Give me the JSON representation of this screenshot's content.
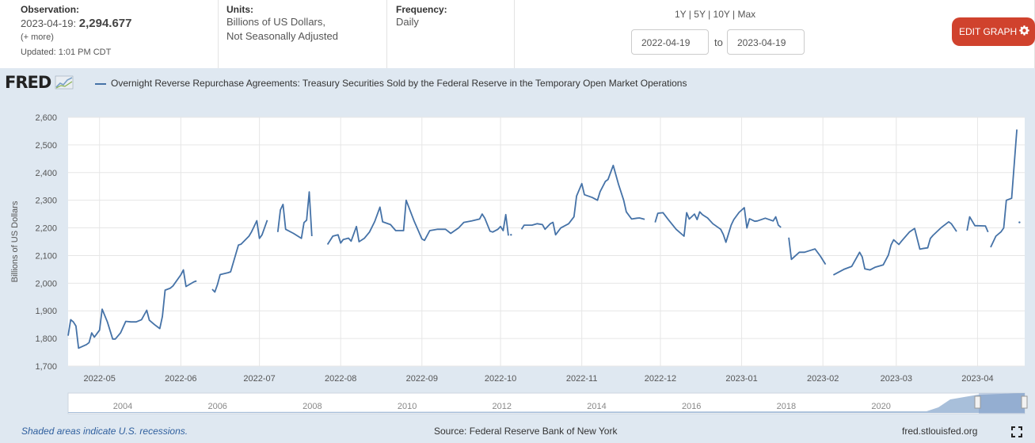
{
  "header": {
    "observation": {
      "label": "Observation:",
      "date": "2023-04-19:",
      "value": "2,294.677",
      "more": "(+ more)",
      "updated": "Updated: 1:01 PM CDT"
    },
    "units": {
      "label": "Units:",
      "line1": "Billions of US Dollars,",
      "line2": "Not Seasonally Adjusted"
    },
    "frequency": {
      "label": "Frequency:",
      "value": "Daily"
    },
    "periods": [
      "1Y",
      "5Y",
      "10Y",
      "Max"
    ],
    "date_from": "2022-04-19",
    "to_label": "to",
    "date_to": "2023-04-19",
    "edit_button": "EDIT GRAPH"
  },
  "logo": "FRED",
  "footer": {
    "recession_note": "Shaded areas indicate U.S. recessions.",
    "source": "Source: Federal Reserve Bank of New York",
    "url": "fred.stlouisfed.org"
  },
  "colors": {
    "series": "#4572a7",
    "edit_button": "#d0422d",
    "plot_bg": "#ffffff",
    "frame_bg": "#dfe8f1"
  },
  "chart_data": {
    "type": "line",
    "series": [
      {
        "name": "Overnight Reverse Repurchase Agreements: Treasury Securities Sold by the Federal Reserve in the Temporary Open Market Operations",
        "segments": [
          [
            [
              "2022-04-19",
              1810
            ],
            [
              "2022-04-20",
              1868
            ],
            [
              "2022-04-21",
              1860
            ],
            [
              "2022-04-22",
              1845
            ],
            [
              "2022-04-23",
              1765
            ],
            [
              "2022-04-26",
              1778
            ],
            [
              "2022-04-27",
              1785
            ],
            [
              "2022-04-28",
              1820
            ],
            [
              "2022-04-29",
              1805
            ],
            [
              "2022-05-01",
              1830
            ],
            [
              "2022-05-02",
              1906
            ],
            [
              "2022-05-04",
              1860
            ],
            [
              "2022-05-06",
              1798
            ],
            [
              "2022-05-07",
              1798
            ],
            [
              "2022-05-09",
              1820
            ],
            [
              "2022-05-11",
              1862
            ],
            [
              "2022-05-13",
              1860
            ],
            [
              "2022-05-15",
              1860
            ],
            [
              "2022-05-17",
              1868
            ],
            [
              "2022-05-19",
              1902
            ],
            [
              "2022-05-20",
              1866
            ],
            [
              "2022-05-22",
              1850
            ],
            [
              "2022-05-24",
              1836
            ],
            [
              "2022-05-25",
              1880
            ],
            [
              "2022-05-26",
              1975
            ],
            [
              "2022-05-28",
              1982
            ],
            [
              "2022-05-29",
              1990
            ],
            [
              "2022-06-01",
              2030
            ],
            [
              "2022-06-02",
              2048
            ],
            [
              "2022-06-03",
              1988
            ],
            [
              "2022-06-06",
              2005
            ],
            [
              "2022-06-07",
              2008
            ]
          ],
          [
            [
              "2022-06-13",
              1978
            ],
            [
              "2022-06-14",
              1968
            ],
            [
              "2022-06-15",
              1995
            ],
            [
              "2022-06-16",
              2031
            ],
            [
              "2022-06-19",
              2038
            ],
            [
              "2022-06-20",
              2041
            ],
            [
              "2022-06-23",
              2138
            ],
            [
              "2022-06-24",
              2141
            ],
            [
              "2022-06-27",
              2170
            ],
            [
              "2022-06-28",
              2186
            ],
            [
              "2022-06-29",
              2206
            ],
            [
              "2022-06-30",
              2226
            ],
            [
              "2022-07-01",
              2162
            ],
            [
              "2022-07-02",
              2175
            ],
            [
              "2022-07-04",
              2228
            ]
          ],
          [
            [
              "2022-07-08",
              2185
            ],
            [
              "2022-07-09",
              2265
            ],
            [
              "2022-07-10",
              2285
            ],
            [
              "2022-07-11",
              2195
            ],
            [
              "2022-07-14",
              2180
            ],
            [
              "2022-07-17",
              2162
            ],
            [
              "2022-07-18",
              2219
            ],
            [
              "2022-07-19",
              2228
            ],
            [
              "2022-07-20",
              2330
            ],
            [
              "2022-07-21",
              2170
            ]
          ],
          [
            [
              "2022-07-27",
              2140
            ],
            [
              "2022-07-29",
              2170
            ],
            [
              "2022-07-31",
              2175
            ],
            [
              "2022-08-01",
              2145
            ],
            [
              "2022-08-02",
              2158
            ],
            [
              "2022-08-04",
              2163
            ],
            [
              "2022-08-05",
              2152
            ],
            [
              "2022-08-07",
              2205
            ],
            [
              "2022-08-08",
              2150
            ],
            [
              "2022-08-10",
              2162
            ],
            [
              "2022-08-12",
              2185
            ],
            [
              "2022-08-14",
              2223
            ],
            [
              "2022-08-16",
              2275
            ],
            [
              "2022-08-17",
              2222
            ],
            [
              "2022-08-20",
              2212
            ],
            [
              "2022-08-22",
              2190
            ],
            [
              "2022-08-25",
              2190
            ],
            [
              "2022-08-26",
              2300
            ],
            [
              "2022-08-29",
              2225
            ],
            [
              "2022-09-01",
              2160
            ],
            [
              "2022-09-02",
              2155
            ],
            [
              "2022-09-04",
              2190
            ],
            [
              "2022-09-07",
              2195
            ],
            [
              "2022-09-10",
              2195
            ],
            [
              "2022-09-12",
              2180
            ],
            [
              "2022-09-15",
              2200
            ],
            [
              "2022-09-17",
              2220
            ],
            [
              "2022-09-20",
              2225
            ],
            [
              "2022-09-23",
              2232
            ],
            [
              "2022-09-24",
              2250
            ],
            [
              "2022-09-25",
              2235
            ],
            [
              "2022-09-27",
              2188
            ],
            [
              "2022-09-28",
              2185
            ],
            [
              "2022-09-30",
              2195
            ],
            [
              "2022-10-01",
              2205
            ],
            [
              "2022-10-02",
              2190
            ],
            [
              "2022-10-03",
              2248
            ],
            [
              "2022-10-04",
              2172
            ]
          ],
          [
            [
              "2022-10-05",
              2175
            ]
          ],
          [
            [
              "2022-10-09",
              2195
            ],
            [
              "2022-10-10",
              2210
            ],
            [
              "2022-10-13",
              2210
            ],
            [
              "2022-10-15",
              2215
            ],
            [
              "2022-10-17",
              2212
            ],
            [
              "2022-10-18",
              2195
            ],
            [
              "2022-10-20",
              2215
            ],
            [
              "2022-10-21",
              2220
            ],
            [
              "2022-10-22",
              2175
            ],
            [
              "2022-10-24",
              2200
            ],
            [
              "2022-10-27",
              2215
            ],
            [
              "2022-10-29",
              2240
            ],
            [
              "2022-10-30",
              2315
            ],
            [
              "2022-11-01",
              2360
            ],
            [
              "2022-11-02",
              2320
            ],
            [
              "2022-11-05",
              2310
            ],
            [
              "2022-11-07",
              2300
            ],
            [
              "2022-11-08",
              2331
            ],
            [
              "2022-11-10",
              2368
            ],
            [
              "2022-11-11",
              2375
            ],
            [
              "2022-11-13",
              2426
            ],
            [
              "2022-11-15",
              2358
            ],
            [
              "2022-11-17",
              2300
            ],
            [
              "2022-11-18",
              2258
            ],
            [
              "2022-11-20",
              2232
            ],
            [
              "2022-11-22",
              2235
            ],
            [
              "2022-11-23",
              2236
            ],
            [
              "2022-11-25",
              2231
            ]
          ],
          [
            [
              "2022-11-29",
              2220
            ],
            [
              "2022-11-30",
              2253
            ],
            [
              "2022-12-02",
              2255
            ],
            [
              "2022-12-04",
              2230
            ],
            [
              "2022-12-07",
              2195
            ],
            [
              "2022-12-10",
              2170
            ],
            [
              "2022-12-11",
              2255
            ],
            [
              "2022-12-12",
              2232
            ],
            [
              "2022-12-14",
              2250
            ],
            [
              "2022-12-15",
              2230
            ],
            [
              "2022-12-16",
              2258
            ],
            [
              "2022-12-17",
              2248
            ],
            [
              "2022-12-19",
              2236
            ],
            [
              "2022-12-21",
              2215
            ],
            [
              "2022-12-24",
              2195
            ],
            [
              "2022-12-25",
              2176
            ],
            [
              "2022-12-26",
              2148
            ],
            [
              "2022-12-28",
              2210
            ],
            [
              "2022-12-29",
              2230
            ],
            [
              "2022-12-31",
              2256
            ],
            [
              "2023-01-02",
              2273
            ],
            [
              "2023-01-03",
              2200
            ],
            [
              "2023-01-04",
              2233
            ],
            [
              "2023-01-06",
              2224
            ],
            [
              "2023-01-07",
              2225
            ],
            [
              "2023-01-10",
              2235
            ],
            [
              "2023-01-13",
              2225
            ],
            [
              "2023-01-14",
              2240
            ],
            [
              "2023-01-15",
              2210
            ],
            [
              "2023-01-16",
              2202
            ]
          ],
          [
            [
              "2023-01-19",
              2165
            ],
            [
              "2023-01-20",
              2086
            ],
            [
              "2023-01-23",
              2112
            ],
            [
              "2023-01-25",
              2112
            ],
            [
              "2023-01-27",
              2118
            ],
            [
              "2023-01-29",
              2124
            ],
            [
              "2023-01-31",
              2098
            ],
            [
              "2023-02-02",
              2068
            ]
          ],
          [
            [
              "2023-02-05",
              2030
            ],
            [
              "2023-02-09",
              2050
            ],
            [
              "2023-02-12",
              2061
            ],
            [
              "2023-02-15",
              2112
            ],
            [
              "2023-02-16",
              2095
            ],
            [
              "2023-02-17",
              2052
            ],
            [
              "2023-02-19",
              2048
            ],
            [
              "2023-02-21",
              2058
            ],
            [
              "2023-02-24",
              2066
            ],
            [
              "2023-02-26",
              2102
            ],
            [
              "2023-02-27",
              2138
            ],
            [
              "2023-02-28",
              2157
            ],
            [
              "2023-03-02",
              2140
            ],
            [
              "2023-03-03",
              2152
            ],
            [
              "2023-03-06",
              2185
            ],
            [
              "2023-03-08",
              2198
            ],
            [
              "2023-03-10",
              2123
            ],
            [
              "2023-03-11",
              2125
            ],
            [
              "2023-03-13",
              2128
            ],
            [
              "2023-03-14",
              2162
            ],
            [
              "2023-03-15",
              2173
            ],
            [
              "2023-03-18",
              2200
            ],
            [
              "2023-03-21",
              2222
            ],
            [
              "2023-03-22",
              2215
            ],
            [
              "2023-03-24",
              2187
            ]
          ],
          [
            [
              "2023-03-28",
              2190
            ],
            [
              "2023-03-29",
              2240
            ],
            [
              "2023-03-31",
              2208
            ],
            [
              "2023-04-01",
              2208
            ],
            [
              "2023-04-04",
              2207
            ],
            [
              "2023-04-05",
              2185
            ]
          ],
          [
            [
              "2023-04-06",
              2130
            ],
            [
              "2023-04-08",
              2170
            ],
            [
              "2023-04-10",
              2186
            ],
            [
              "2023-04-11",
              2200
            ],
            [
              "2023-04-12",
              2300
            ],
            [
              "2023-04-14",
              2307
            ],
            [
              "2023-04-16",
              2556
            ]
          ],
          [
            [
              "2023-04-17",
              2220
            ]
          ]
        ]
      }
    ],
    "ylim": [
      1700,
      2600
    ],
    "yticks": [
      "1,700",
      "1,800",
      "1,900",
      "2,000",
      "2,100",
      "2,200",
      "2,300",
      "2,400",
      "2,500",
      "2,600"
    ],
    "xtick_labels": [
      "2022-05",
      "2022-06",
      "2022-07",
      "2022-08",
      "2022-09",
      "2022-10",
      "2022-11",
      "2022-12",
      "2023-01",
      "2023-02",
      "2023-03",
      "2023-04"
    ],
    "ylabel": "Billions of US Dollars",
    "navigator_labels": [
      "2004",
      "2006",
      "2008",
      "2010",
      "2012",
      "2014",
      "2016",
      "2018",
      "2020"
    ],
    "grid": true
  }
}
